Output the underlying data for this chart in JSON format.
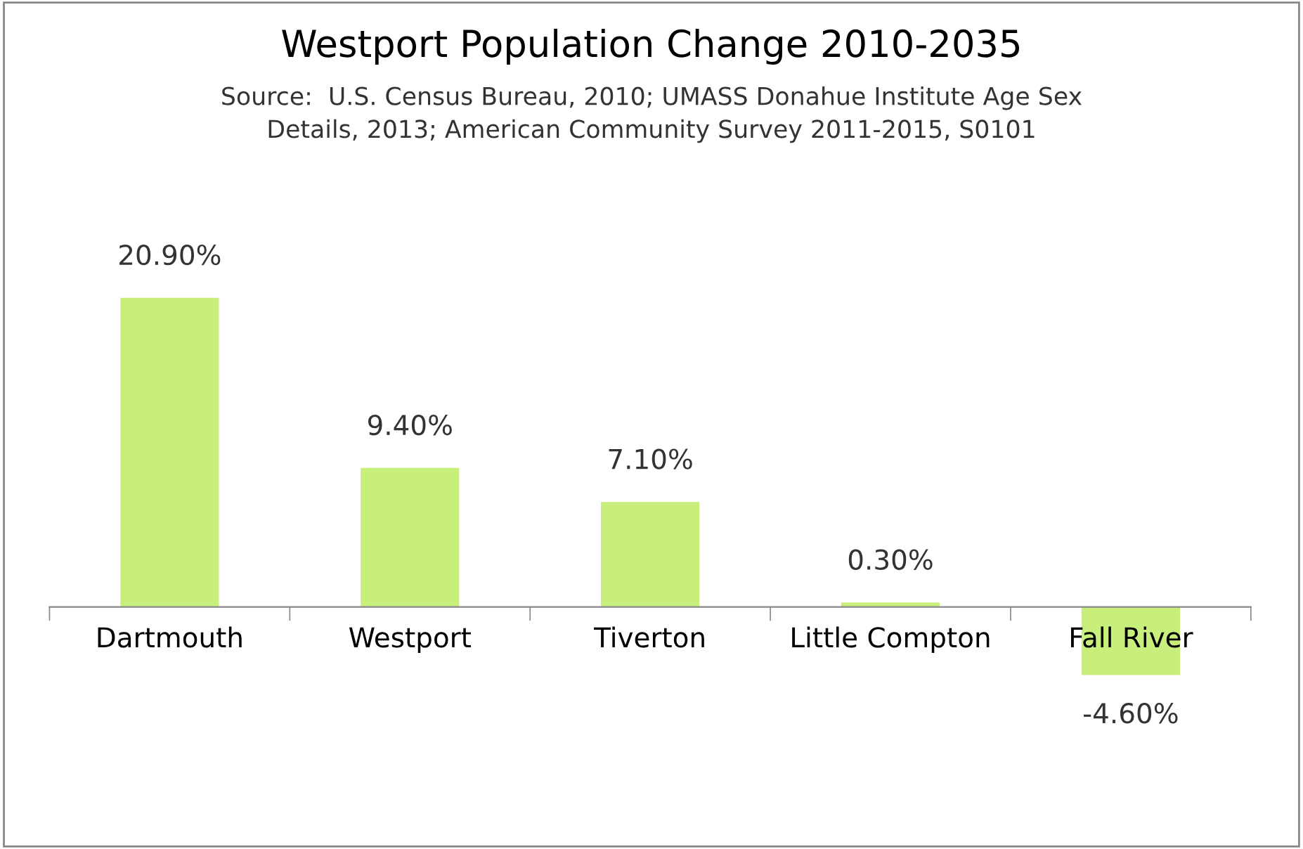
{
  "chart_data": {
    "type": "bar",
    "title": "Westport Population Change 2010-2035",
    "subtitle": "Source:  U.S. Census Bureau, 2010; UMASS Donahue Institute Age Sex\nDetails, 2013; American Community Survey 2011-2015, S0101",
    "categories": [
      "Dartmouth",
      "Westport",
      "Tiverton",
      "Little Compton",
      "Fall River"
    ],
    "values": [
      20.9,
      9.4,
      7.1,
      0.3,
      -4.6
    ],
    "value_labels": [
      "20.90%",
      "9.40%",
      "7.10%",
      "0.30%",
      "-4.60%"
    ],
    "color": "#c8ee7c",
    "legend": false,
    "grid": false
  }
}
